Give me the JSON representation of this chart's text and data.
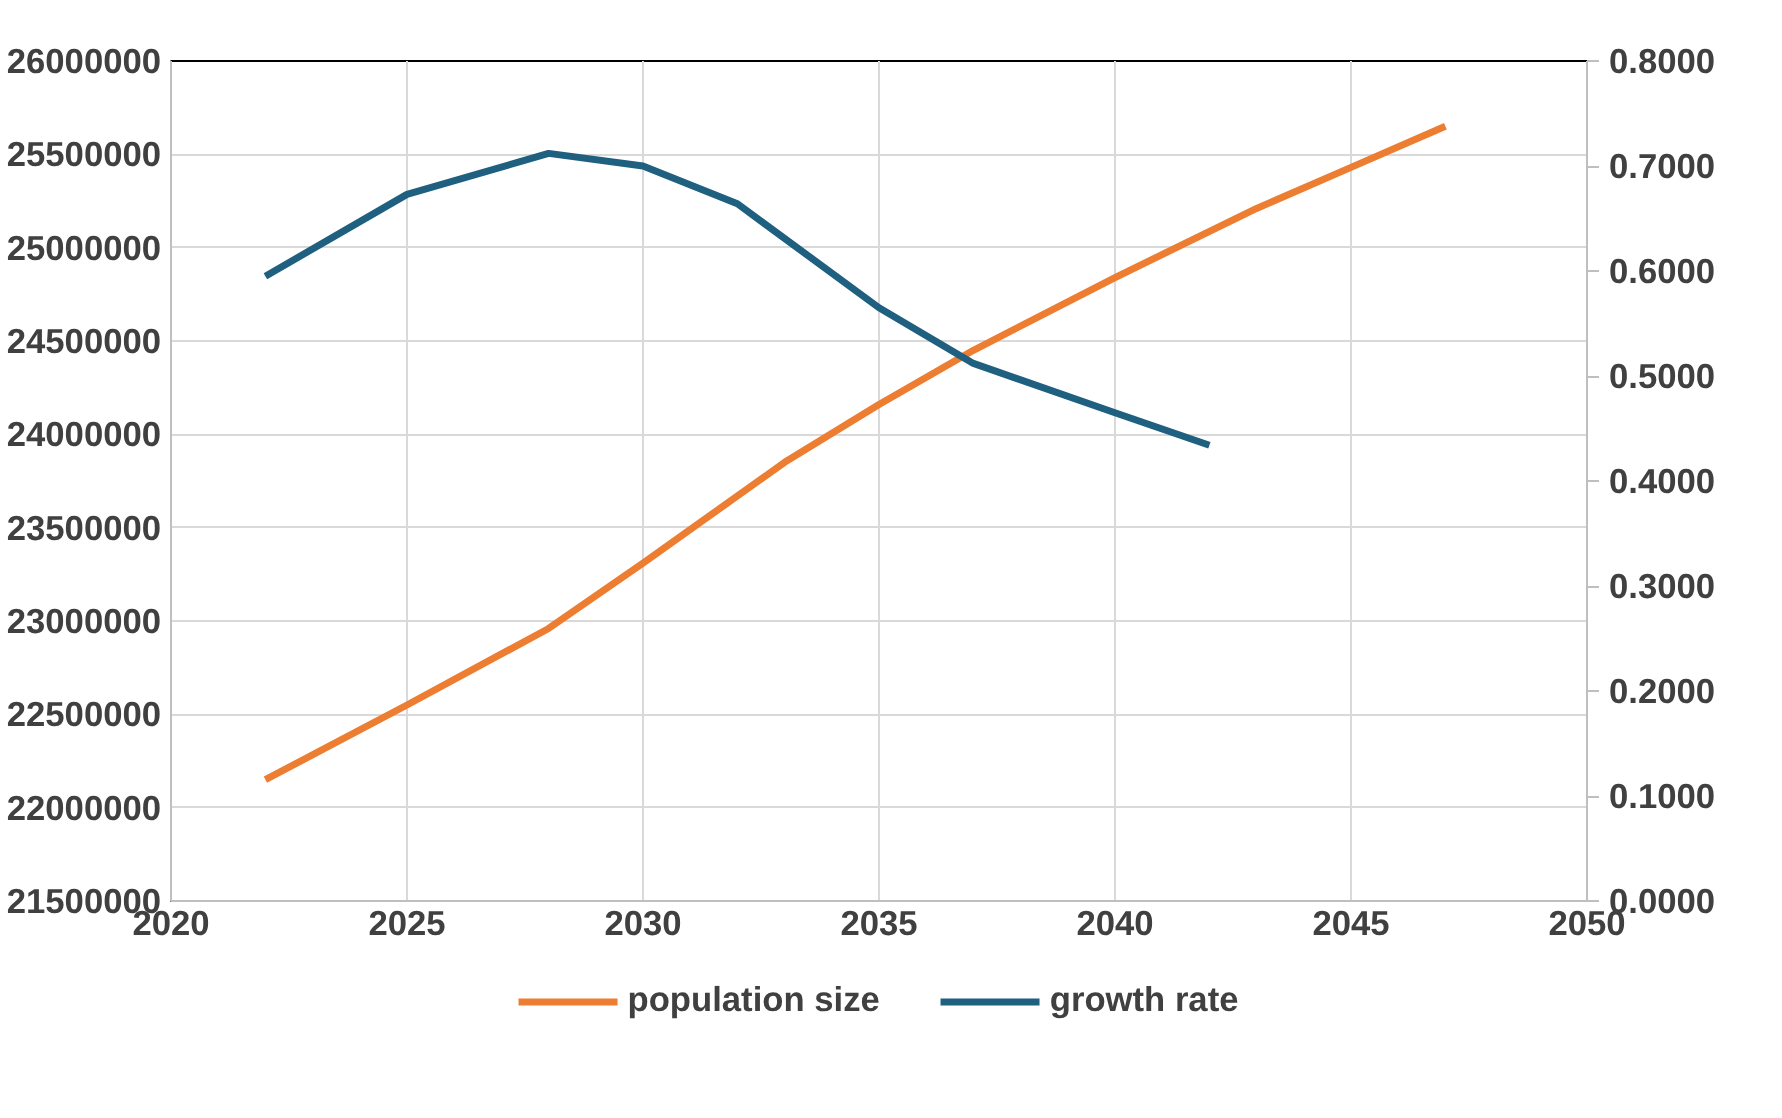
{
  "chart_data": {
    "type": "line",
    "x": [
      2022,
      2025,
      2028,
      2030,
      2033,
      2035,
      2037,
      2040,
      2043,
      2045,
      2047
    ],
    "series": [
      {
        "name": "population size",
        "color": "#ed7d31",
        "values": [
          22150000,
          22550000,
          22960000,
          23310000,
          23850000,
          24160000,
          24450000,
          24840000,
          25210000,
          25430000,
          25650000
        ]
      },
      {
        "name": "growth rate",
        "color": "#1f5f7f",
        "axis": "y2",
        "x": [
          2022,
          2025,
          2028,
          2030,
          2032,
          2035,
          2037,
          2040,
          2042
        ],
        "values": [
          0.595,
          0.673,
          0.712,
          0.7,
          0.664,
          0.565,
          0.512,
          0.465,
          0.434
        ]
      }
    ],
    "xlim": [
      2020,
      2050
    ],
    "xticks": [
      2020,
      2025,
      2030,
      2035,
      2040,
      2045,
      2050
    ],
    "ylim": [
      21500000,
      26000000
    ],
    "yticks": [
      21500000,
      22000000,
      22500000,
      23000000,
      23500000,
      24000000,
      24500000,
      25000000,
      25500000,
      26000000
    ],
    "y2lim": [
      0,
      0.8
    ],
    "y2ticks": [
      {
        "value": 0,
        "label": "0.0000"
      },
      {
        "value": 0.1,
        "label": "0.1000"
      },
      {
        "value": 0.2,
        "label": "0.2000"
      },
      {
        "value": 0.3,
        "label": "0.3000"
      },
      {
        "value": 0.4,
        "label": "0.4000"
      },
      {
        "value": 0.5,
        "label": "0.5000"
      },
      {
        "value": 0.6,
        "label": "0.6000"
      },
      {
        "value": 0.7,
        "label": "0.7000"
      },
      {
        "value": 0.8,
        "label": "0.8000"
      }
    ],
    "grid": true,
    "legend": "bottom",
    "marker": "none",
    "line_style": "solid"
  }
}
